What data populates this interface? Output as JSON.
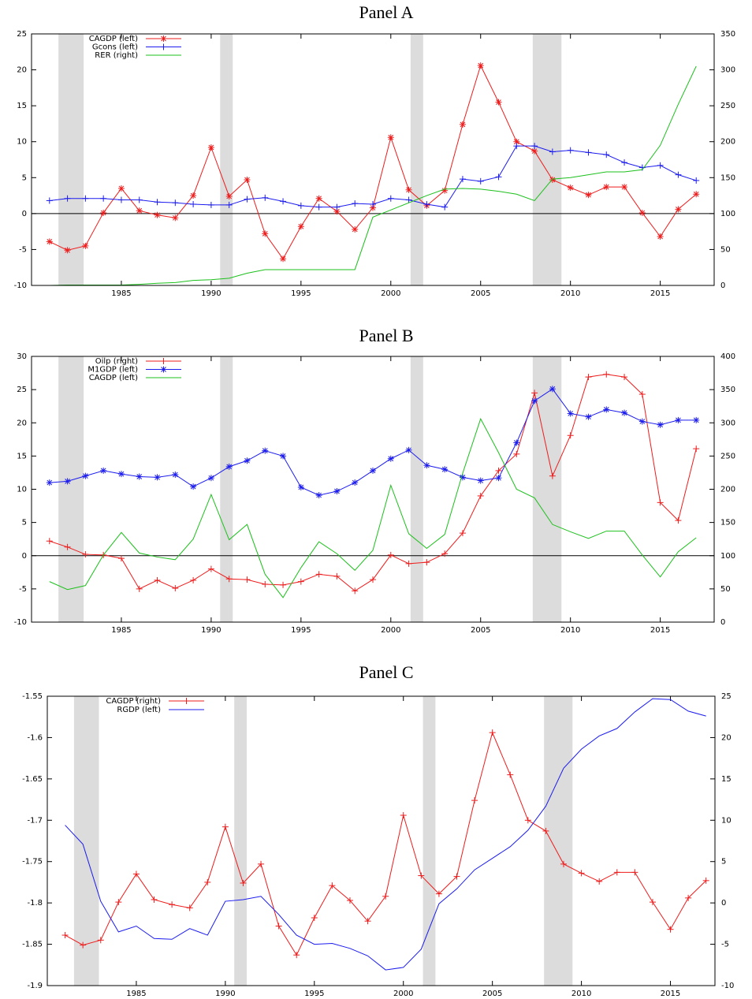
{
  "chart_data": [
    {
      "type": "line",
      "title": "Panel A",
      "x": [
        1981,
        1982,
        1983,
        1984,
        1985,
        1986,
        1987,
        1988,
        1989,
        1990,
        1991,
        1992,
        1993,
        1994,
        1995,
        1996,
        1997,
        1998,
        1999,
        2000,
        2001,
        2002,
        2003,
        2004,
        2005,
        2006,
        2007,
        2008,
        2009,
        2010,
        2011,
        2012,
        2013,
        2014,
        2015,
        2016,
        2017
      ],
      "xlim": [
        1980,
        2018
      ],
      "xticks": [
        1985,
        1990,
        1995,
        2000,
        2005,
        2010,
        2015
      ],
      "ylim": [
        -10,
        25
      ],
      "yticks": [
        -10,
        -5,
        0,
        5,
        10,
        15,
        20,
        25
      ],
      "y2lim": [
        0,
        350
      ],
      "y2ticks": [
        0,
        50,
        100,
        150,
        200,
        250,
        300,
        350
      ],
      "zero_line": true,
      "shaded_periods": [
        [
          1981.5,
          1982.9
        ],
        [
          1990.5,
          1991.2
        ],
        [
          2001.1,
          2001.8
        ],
        [
          2007.9,
          2009.5
        ]
      ],
      "shade_color": "#dcdcdc",
      "legend": "upper-left",
      "series": [
        {
          "name": "CAGDP  (left)",
          "color": "#ee1c1c",
          "marker": "star",
          "axis": "y",
          "values": [
            -3.9,
            -5.1,
            -4.5,
            0.1,
            3.5,
            0.4,
            -0.2,
            -0.6,
            2.5,
            9.2,
            2.4,
            4.7,
            -2.8,
            -6.3,
            -1.8,
            2.1,
            0.3,
            -2.2,
            0.8,
            10.6,
            3.3,
            1.1,
            3.2,
            12.4,
            20.6,
            15.5,
            10.0,
            8.7,
            4.7,
            3.6,
            2.6,
            3.7,
            3.7,
            0.1,
            -3.2,
            0.6,
            2.7
          ]
        },
        {
          "name": "Gcons  (left)",
          "color": "#1c1cee",
          "marker": "plus",
          "axis": "y",
          "values": [
            1.8,
            2.1,
            2.1,
            2.1,
            1.9,
            1.9,
            1.6,
            1.5,
            1.3,
            1.2,
            1.2,
            2.0,
            2.2,
            1.7,
            1.1,
            0.9,
            0.9,
            1.4,
            1.3,
            2.1,
            1.9,
            1.3,
            0.9,
            4.8,
            4.5,
            5.1,
            9.4,
            9.4,
            8.6,
            8.8,
            8.5,
            8.2,
            7.1,
            6.4,
            6.7,
            5.4,
            4.6
          ]
        },
        {
          "name": "RER  (right)",
          "color": "#1cc01c",
          "marker": "none",
          "axis": "y2",
          "values": [
            0,
            0.5,
            0.5,
            0.5,
            0.5,
            1.5,
            3,
            4,
            7,
            8,
            10,
            17,
            22,
            22,
            22,
            22,
            22,
            22,
            95,
            105,
            115,
            125,
            134,
            135,
            134,
            131,
            127,
            118,
            148,
            150,
            154,
            158,
            158,
            161,
            195,
            252,
            305
          ]
        }
      ]
    },
    {
      "type": "line",
      "title": "Panel B",
      "x": [
        1981,
        1982,
        1983,
        1984,
        1985,
        1986,
        1987,
        1988,
        1989,
        1990,
        1991,
        1992,
        1993,
        1994,
        1995,
        1996,
        1997,
        1998,
        1999,
        2000,
        2001,
        2002,
        2003,
        2004,
        2005,
        2006,
        2007,
        2008,
        2009,
        2010,
        2011,
        2012,
        2013,
        2014,
        2015,
        2016,
        2017
      ],
      "xlim": [
        1980,
        2018
      ],
      "xticks": [
        1985,
        1990,
        1995,
        2000,
        2005,
        2010,
        2015
      ],
      "ylim": [
        -10,
        30
      ],
      "yticks": [
        -10,
        -5,
        0,
        5,
        10,
        15,
        20,
        25,
        30
      ],
      "y2lim": [
        0,
        400
      ],
      "y2ticks": [
        0,
        50,
        100,
        150,
        200,
        250,
        300,
        350,
        400
      ],
      "zero_line": true,
      "shaded_periods": [
        [
          1981.5,
          1982.9
        ],
        [
          1990.5,
          1991.2
        ],
        [
          2001.1,
          2001.8
        ],
        [
          2007.9,
          2009.5
        ]
      ],
      "shade_color": "#dcdcdc",
      "legend": "upper-left",
      "series": [
        {
          "name": "Oilp  (right)",
          "color": "#ee1c1c",
          "marker": "plus",
          "axis": "y2",
          "values": [
            122,
            113,
            102,
            101,
            96,
            50,
            63,
            51,
            63,
            80,
            65,
            64,
            57,
            56,
            61,
            72,
            69,
            47,
            64,
            101,
            88,
            90,
            103,
            134,
            190,
            228,
            253,
            345,
            220,
            281,
            369,
            373,
            369,
            343,
            180,
            153,
            261
          ]
        },
        {
          "name": "M1GDP  (left)",
          "color": "#1c1cee",
          "marker": "star",
          "axis": "y",
          "values": [
            11.0,
            11.2,
            12.0,
            12.8,
            12.3,
            11.9,
            11.8,
            12.2,
            10.4,
            11.7,
            13.4,
            14.3,
            15.8,
            15.0,
            10.3,
            9.1,
            9.7,
            11.0,
            12.8,
            14.6,
            15.9,
            13.6,
            13.0,
            11.8,
            11.3,
            11.7,
            17.0,
            23.3,
            25.1,
            21.4,
            20.9,
            22.0,
            21.5,
            20.2,
            19.7,
            20.4,
            20.4
          ]
        },
        {
          "name": "CAGDP  (left)",
          "color": "#1cc01c",
          "marker": "none",
          "axis": "y",
          "values": [
            -3.9,
            -5.1,
            -4.5,
            0.1,
            3.5,
            0.4,
            -0.2,
            -0.6,
            2.5,
            9.2,
            2.4,
            4.7,
            -2.8,
            -6.3,
            -1.8,
            2.1,
            0.3,
            -2.2,
            0.8,
            10.6,
            3.3,
            1.1,
            3.2,
            12.4,
            20.6,
            15.5,
            10.0,
            8.7,
            4.7,
            3.6,
            2.6,
            3.7,
            3.7,
            0.1,
            -3.2,
            0.6,
            2.7
          ]
        }
      ]
    },
    {
      "type": "line",
      "title": "Panel C",
      "x": [
        1981,
        1982,
        1983,
        1984,
        1985,
        1986,
        1987,
        1988,
        1989,
        1990,
        1991,
        1992,
        1993,
        1994,
        1995,
        1996,
        1997,
        1998,
        1999,
        2000,
        2001,
        2002,
        2003,
        2004,
        2005,
        2006,
        2007,
        2008,
        2009,
        2010,
        2011,
        2012,
        2013,
        2014,
        2015,
        2016,
        2017
      ],
      "xlim": [
        1980,
        2017.5
      ],
      "xticks": [
        1985,
        1990,
        1995,
        2000,
        2005,
        2010,
        2015
      ],
      "ylim": [
        -1.9,
        -1.55
      ],
      "yticks": [
        -1.9,
        -1.85,
        -1.8,
        -1.75,
        -1.7,
        -1.65,
        -1.6,
        -1.55
      ],
      "y2lim": [
        -10,
        25
      ],
      "y2ticks": [
        -10,
        -5,
        0,
        5,
        10,
        15,
        20,
        25
      ],
      "zero_line": false,
      "shaded_periods": [
        [
          1981.5,
          1982.9
        ],
        [
          1990.5,
          1991.2
        ],
        [
          2001.1,
          2001.8
        ],
        [
          2007.9,
          2009.5
        ]
      ],
      "shade_color": "#dcdcdc",
      "legend": "upper-left",
      "series": [
        {
          "name": "CAGDP  (right)",
          "color": "#ee1c1c",
          "marker": "plus",
          "axis": "y2",
          "values": [
            -3.9,
            -5.1,
            -4.5,
            0.1,
            3.5,
            0.4,
            -0.2,
            -0.6,
            2.5,
            9.2,
            2.4,
            4.7,
            -2.8,
            -6.3,
            -1.8,
            2.1,
            0.3,
            -2.2,
            0.8,
            10.6,
            3.3,
            1.1,
            3.2,
            12.4,
            20.6,
            15.5,
            10.0,
            8.7,
            4.7,
            3.6,
            2.6,
            3.7,
            3.7,
            0.1,
            -3.2,
            0.6,
            2.7
          ]
        },
        {
          "name": "RGDP  (left)",
          "color": "#1c1cee",
          "marker": "none",
          "axis": "y",
          "values": [
            -1.706,
            -1.729,
            -1.798,
            -1.835,
            -1.828,
            -1.843,
            -1.844,
            -1.831,
            -1.839,
            -1.798,
            -1.796,
            -1.792,
            -1.814,
            -1.839,
            -1.85,
            -1.849,
            -1.855,
            -1.864,
            -1.881,
            -1.878,
            -1.856,
            -1.801,
            -1.783,
            -1.76,
            -1.746,
            -1.732,
            -1.712,
            -1.683,
            -1.637,
            -1.614,
            -1.598,
            -1.589,
            -1.569,
            -1.553,
            -1.554,
            -1.568,
            -1.574
          ]
        }
      ]
    }
  ]
}
